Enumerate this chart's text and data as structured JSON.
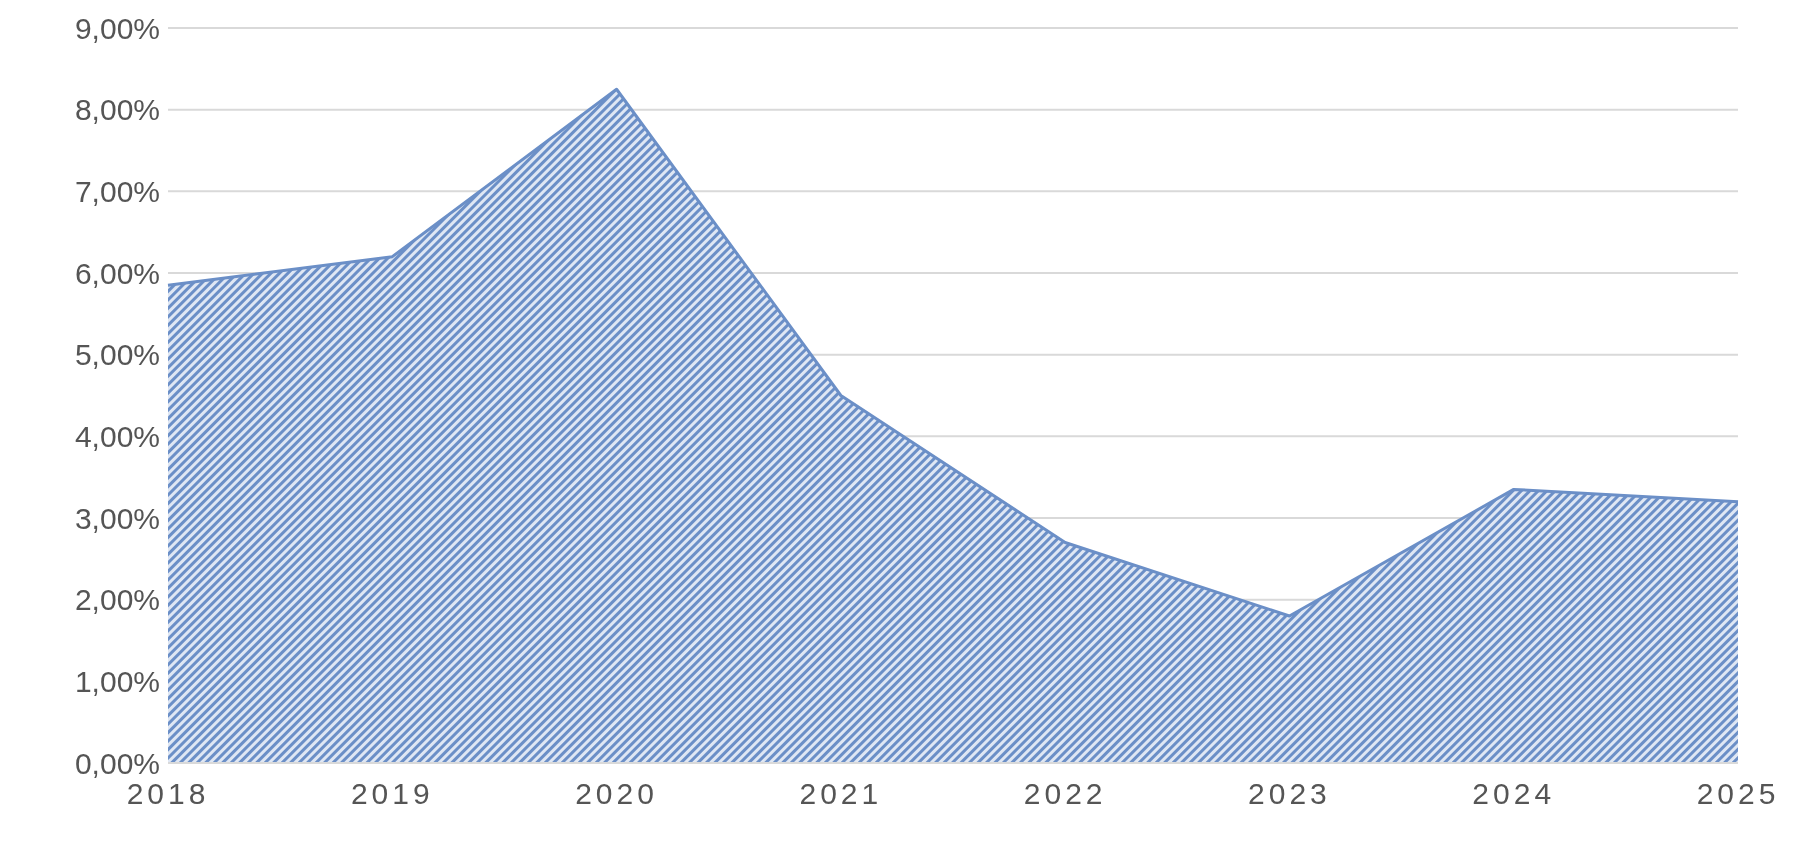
{
  "chart_data": {
    "type": "area",
    "categories": [
      "2018",
      "2019",
      "2020",
      "2021",
      "2022",
      "2023",
      "2024",
      "2025"
    ],
    "series": [
      {
        "color": "#6b8fc7",
        "values": [
          5.85,
          6.2,
          8.25,
          4.5,
          2.7,
          1.8,
          3.35,
          3.2
        ]
      }
    ],
    "ylim": [
      0,
      9
    ],
    "yticks": [
      {
        "value": 0,
        "label": "0,00%"
      },
      {
        "value": 1,
        "label": "1,00%"
      },
      {
        "value": 2,
        "label": "2,00%"
      },
      {
        "value": 3,
        "label": "3,00%"
      },
      {
        "value": 4,
        "label": "4,00%"
      },
      {
        "value": 5,
        "label": "5,00%"
      },
      {
        "value": 6,
        "label": "6,00%"
      },
      {
        "value": 7,
        "label": "7,00%"
      },
      {
        "value": 8,
        "label": "8,00%"
      },
      {
        "value": 9,
        "label": "9,00%"
      }
    ],
    "grid": "y",
    "legend": false
  }
}
